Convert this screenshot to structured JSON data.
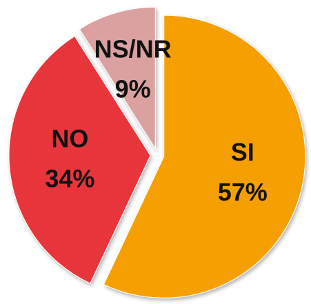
{
  "chart_data": {
    "type": "pie",
    "categories": [
      "SI",
      "NO",
      "NS/NR"
    ],
    "values": [
      57,
      34,
      9
    ],
    "value_labels": [
      "57%",
      "34%",
      "9%"
    ],
    "colors": [
      "#f5a000",
      "#e8343a",
      "#dba1a1"
    ]
  }
}
